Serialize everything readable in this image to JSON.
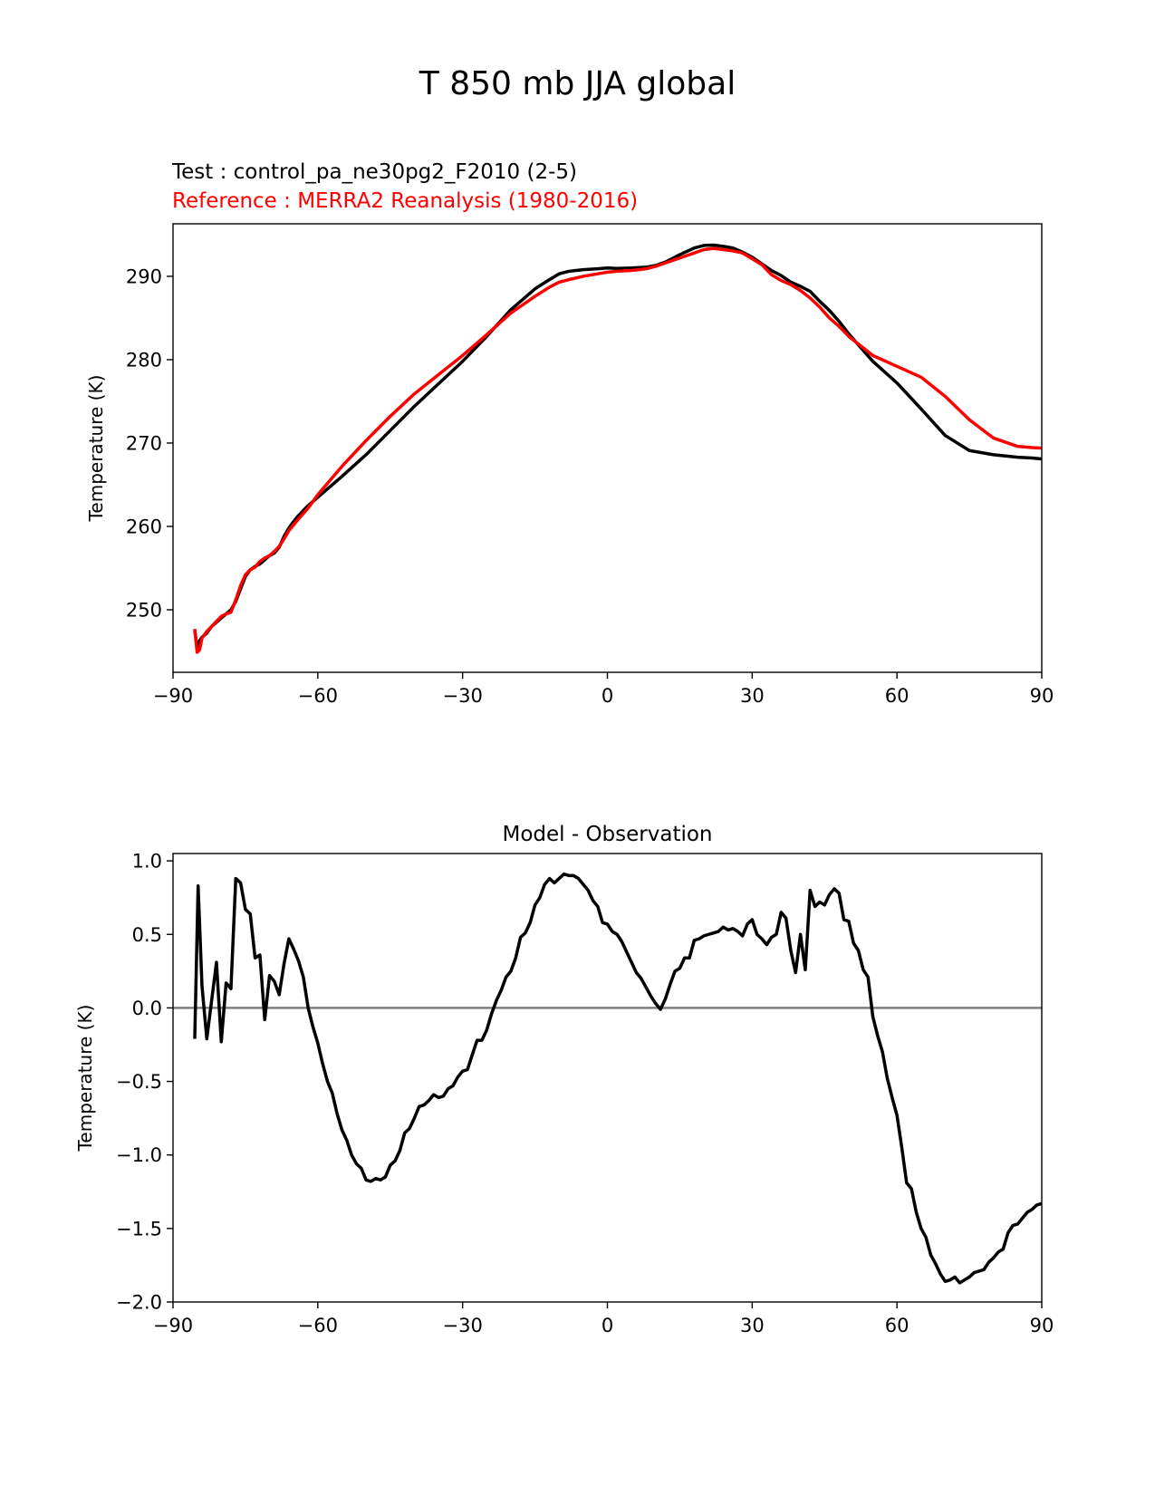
{
  "figure_title": "T 850 mb JJA global",
  "colors": {
    "test": "#000000",
    "reference": "#ff0000",
    "zero_line": "#808080"
  },
  "chart_data": [
    {
      "type": "line",
      "test_label": "Test : control_pa_ne30pg2_F2010 (2-5)",
      "reference_label": "Reference : MERRA2 Reanalysis (1980-2016)",
      "xlabel": "",
      "ylabel": "Temperature (K)",
      "xlim": [
        -90,
        90
      ],
      "ylim": [
        242.5,
        296.3
      ],
      "xticks": [
        -90,
        -60,
        -30,
        0,
        30,
        60,
        90
      ],
      "yticks": [
        250,
        260,
        270,
        280,
        290
      ],
      "series": [
        {
          "name": "Test : control_pa_ne30pg2_F2010 (2-5)",
          "color": "#000000",
          "x": [
            -85.5,
            -85,
            -84.5,
            -84,
            -83,
            -82,
            -80,
            -79,
            -78,
            -77,
            -76,
            -75,
            -74,
            -73,
            -72,
            -71,
            -70,
            -69,
            -68,
            -67,
            -66,
            -65,
            -64,
            -62,
            -60,
            -55,
            -50,
            -45,
            -40,
            -35,
            -30,
            -25,
            -20,
            -15,
            -12,
            -10,
            -8,
            -5,
            -2,
            0,
            2,
            5,
            8,
            10,
            12,
            15,
            18,
            20,
            22,
            24,
            26,
            28,
            30,
            32,
            34,
            36,
            38,
            40,
            42,
            44,
            46,
            48,
            50,
            55,
            60,
            65,
            70,
            75,
            80,
            85,
            88,
            90
          ],
          "y": [
            247.5,
            245.5,
            246.3,
            246.7,
            247.2,
            248,
            249,
            249.5,
            250,
            251,
            252.5,
            254,
            254.8,
            255.2,
            255.5,
            256,
            256.5,
            256.8,
            257.5,
            258.8,
            259.8,
            260.6,
            261.3,
            262.5,
            263.5,
            266,
            268.6,
            271.5,
            274.4,
            277.1,
            279.8,
            282.8,
            286,
            288.5,
            289.6,
            290.3,
            290.6,
            290.8,
            290.9,
            291,
            290.95,
            291,
            291.1,
            291.3,
            291.7,
            292.6,
            293.4,
            293.7,
            293.75,
            293.6,
            293.4,
            292.9,
            292.3,
            291.5,
            290.7,
            290.1,
            289.3,
            288.8,
            288.2,
            287,
            285.9,
            284.6,
            283.1,
            279.8,
            277.2,
            274.1,
            270.9,
            269.1,
            268.6,
            268.3,
            268.2,
            268.1
          ]
        },
        {
          "name": "Reference : MERRA2 Reanalysis (1980-2016)",
          "color": "#ff0000",
          "x": [
            -85.5,
            -85,
            -84.5,
            -84,
            -83,
            -82,
            -80,
            -79,
            -78,
            -77,
            -76,
            -75,
            -74,
            -73,
            -72,
            -71,
            -70,
            -69,
            -68,
            -67,
            -66,
            -65,
            -64,
            -62,
            -60,
            -55,
            -50,
            -45,
            -40,
            -35,
            -30,
            -25,
            -20,
            -15,
            -12,
            -10,
            -8,
            -5,
            -2,
            0,
            2,
            5,
            8,
            10,
            12,
            15,
            18,
            20,
            22,
            24,
            26,
            28,
            30,
            32,
            34,
            36,
            38,
            40,
            42,
            44,
            46,
            48,
            50,
            55,
            60,
            65,
            70,
            75,
            80,
            85,
            88,
            90
          ],
          "y": [
            247.7,
            244.9,
            245.2,
            246.6,
            247.4,
            248,
            249.2,
            249.5,
            249.7,
            251.2,
            252.9,
            254.2,
            254.8,
            255.1,
            255.8,
            256.2,
            256.5,
            257,
            257.6,
            258.5,
            259.5,
            260.2,
            260.9,
            262.2,
            263.8,
            267.2,
            270.3,
            273.2,
            275.9,
            278.2,
            280.5,
            283,
            285.6,
            287.6,
            288.7,
            289.3,
            289.6,
            290,
            290.3,
            290.5,
            290.6,
            290.7,
            290.9,
            291.2,
            291.6,
            292.2,
            292.8,
            293.2,
            293.35,
            293.2,
            293.05,
            292.8,
            292.1,
            291.4,
            290.2,
            289.5,
            289,
            288.3,
            287.4,
            286.3,
            285,
            284,
            282.8,
            280.5,
            279.2,
            277.9,
            275.6,
            272.8,
            270.6,
            269.6,
            269.45,
            269.4
          ]
        }
      ]
    },
    {
      "type": "line",
      "title": "Model - Observation",
      "xlabel": "",
      "ylabel": "Temperature (K)",
      "xlim": [
        -90,
        90
      ],
      "ylim": [
        -2.0,
        1.05
      ],
      "xticks": [
        -90,
        -60,
        -30,
        0,
        30,
        60,
        90
      ],
      "yticks": [
        1.0,
        0.5,
        0.0,
        -0.5,
        -1.0,
        -1.5,
        -2.0
      ],
      "zero_line": true,
      "series": [
        {
          "color": "#000000",
          "x": [
            -85.5,
            -84.8,
            -84,
            -83,
            -82,
            -81,
            -80,
            -79,
            -78,
            -77,
            -76,
            -75,
            -74,
            -73,
            -72,
            -71,
            -70,
            -69,
            -68,
            -67,
            -66,
            -65,
            -64,
            -63,
            -62,
            -61,
            -60,
            -59,
            -58,
            -57,
            -56,
            -55,
            -54,
            -53,
            -52,
            -51,
            -50,
            -49,
            -48,
            -47,
            -46,
            -45,
            -44,
            -43,
            -42,
            -41,
            -40,
            -39,
            -38,
            -37,
            -36,
            -35,
            -34,
            -33,
            -32,
            -31,
            -30,
            -29,
            -28,
            -27,
            -26,
            -25,
            -24,
            -23,
            -22,
            -21,
            -20,
            -19,
            -18,
            -17,
            -16,
            -15,
            -14,
            -13,
            -12,
            -11,
            -10,
            -9,
            -8,
            -7,
            -6,
            -5,
            -4,
            -3,
            -2,
            -1,
            0,
            1,
            2,
            3,
            4,
            5,
            6,
            7,
            8,
            9,
            10,
            11,
            12,
            13,
            14,
            15,
            16,
            17,
            18,
            19,
            20,
            21,
            22,
            23,
            24,
            25,
            26,
            27,
            28,
            29,
            30,
            31,
            32,
            33,
            34,
            35,
            36,
            37,
            38,
            39,
            40,
            41,
            42,
            43,
            44,
            45,
            46,
            47,
            48,
            49,
            50,
            51,
            52,
            53,
            54,
            55,
            56,
            57,
            58,
            59,
            60,
            61,
            62,
            63,
            64,
            65,
            66,
            67,
            68,
            69,
            70,
            71,
            72,
            73,
            74,
            75,
            76,
            77,
            78,
            79,
            80,
            81,
            82,
            83,
            84,
            85,
            86,
            87,
            88,
            89,
            90
          ],
          "y": [
            -0.21,
            0.83,
            0.15,
            -0.21,
            0.05,
            0.31,
            -0.23,
            0.17,
            0.13,
            0.88,
            0.85,
            0.67,
            0.64,
            0.34,
            0.36,
            -0.08,
            0.22,
            0.18,
            0.09,
            0.3,
            0.47,
            0.4,
            0.32,
            0.21,
            0,
            -0.13,
            -0.24,
            -0.38,
            -0.5,
            -0.58,
            -0.72,
            -0.83,
            -0.9,
            -1.0,
            -1.06,
            -1.09,
            -1.17,
            -1.18,
            -1.16,
            -1.17,
            -1.15,
            -1.07,
            -1.04,
            -0.97,
            -0.85,
            -0.82,
            -0.75,
            -0.67,
            -0.66,
            -0.63,
            -0.59,
            -0.61,
            -0.6,
            -0.55,
            -0.53,
            -0.47,
            -0.43,
            -0.42,
            -0.32,
            -0.22,
            -0.22,
            -0.15,
            -0.04,
            0.05,
            0.12,
            0.21,
            0.25,
            0.34,
            0.48,
            0.51,
            0.58,
            0.7,
            0.75,
            0.84,
            0.88,
            0.85,
            0.88,
            0.91,
            0.9,
            0.9,
            0.88,
            0.84,
            0.8,
            0.73,
            0.69,
            0.58,
            0.57,
            0.52,
            0.5,
            0.45,
            0.38,
            0.31,
            0.24,
            0.2,
            0.14,
            0.08,
            0.03,
            -0.01,
            0.06,
            0.16,
            0.25,
            0.27,
            0.34,
            0.34,
            0.46,
            0.47,
            0.49,
            0.5,
            0.51,
            0.52,
            0.55,
            0.53,
            0.54,
            0.52,
            0.49,
            0.57,
            0.6,
            0.5,
            0.47,
            0.43,
            0.48,
            0.5,
            0.65,
            0.61,
            0.39,
            0.24,
            0.5,
            0.26,
            0.8,
            0.69,
            0.72,
            0.7,
            0.77,
            0.81,
            0.78,
            0.6,
            0.59,
            0.44,
            0.39,
            0.26,
            0.21,
            -0.06,
            -0.19,
            -0.3,
            -0.48,
            -0.61,
            -0.73,
            -0.95,
            -1.19,
            -1.23,
            -1.39,
            -1.5,
            -1.56,
            -1.68,
            -1.74,
            -1.81,
            -1.86,
            -1.85,
            -1.83,
            -1.87,
            -1.85,
            -1.83,
            -1.8,
            -1.79,
            -1.78,
            -1.73,
            -1.7,
            -1.66,
            -1.64,
            -1.53,
            -1.48,
            -1.47,
            -1.43,
            -1.39,
            -1.37,
            -1.34,
            -1.33
          ]
        }
      ]
    }
  ]
}
